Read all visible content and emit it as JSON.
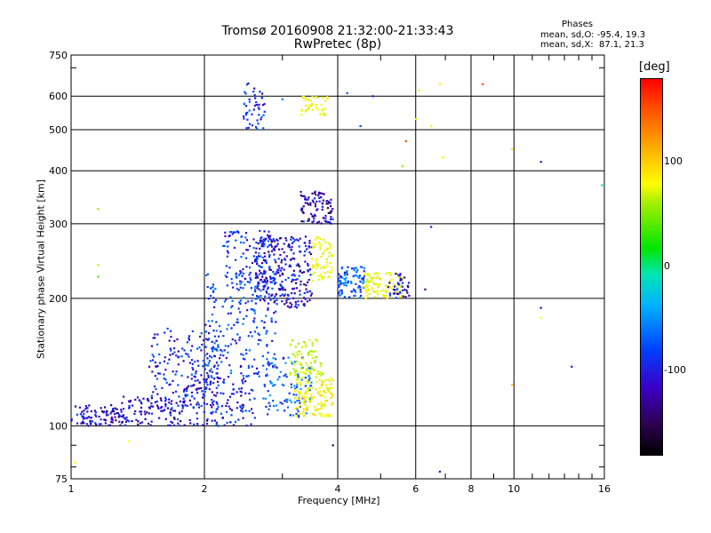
{
  "chart_data": {
    "type": "scatter",
    "title": "Tromsø 20160908 21:32:00-21:33:43",
    "subtitle": "RwPretec (8p)",
    "xlabel": "Frequency [MHz]",
    "ylabel": "Stationary phase Virtual Height [km]",
    "x_scale": "log",
    "y_scale": "log",
    "xlim": [
      1,
      16
    ],
    "ylim": [
      75,
      750
    ],
    "x_ticks": [
      "1",
      "2",
      "4",
      "6",
      "8",
      "10",
      "16"
    ],
    "y_ticks": [
      "75",
      "100",
      "200",
      "300",
      "400",
      "500",
      "600",
      "750"
    ],
    "grid": true,
    "phases": {
      "header": "Phases",
      "o_mode": "mean, sd,O: -95.4, 19.3",
      "x_mode": "mean, sd,X:  87.1, 21.3"
    },
    "colorbar": {
      "label": "[deg]",
      "range": [
        -180,
        180
      ],
      "ticks": [
        "100",
        "0",
        "-100"
      ]
    },
    "clusters": [
      {
        "f": [
          1.0,
          1.3
        ],
        "h": [
          100,
          112
        ],
        "phase": -125,
        "n": 90
      },
      {
        "f": [
          1.3,
          1.8
        ],
        "h": [
          100,
          118
        ],
        "phase": -120,
        "n": 110
      },
      {
        "f": [
          1.5,
          2.2
        ],
        "h": [
          110,
          170
        ],
        "phase": -110,
        "n": 170
      },
      {
        "f": [
          1.8,
          2.6
        ],
        "h": [
          100,
          130
        ],
        "phase": -115,
        "n": 140
      },
      {
        "f": [
          2.0,
          2.9
        ],
        "h": [
          130,
          230
        ],
        "phase": -100,
        "n": 220
      },
      {
        "f": [
          2.2,
          2.9
        ],
        "h": [
          210,
          290
        ],
        "phase": -105,
        "n": 120
      },
      {
        "f": [
          2.6,
          3.5
        ],
        "h": [
          190,
          280
        ],
        "phase": -120,
        "n": 260
      },
      {
        "f": [
          2.7,
          3.5
        ],
        "h": [
          105,
          145
        ],
        "phase": -90,
        "n": 110
      },
      {
        "f": [
          3.1,
          3.7
        ],
        "h": [
          130,
          160
        ],
        "phase": 60,
        "n": 80
      },
      {
        "f": [
          3.2,
          3.9
        ],
        "h": [
          105,
          130
        ],
        "phase": 90,
        "n": 130
      },
      {
        "f": [
          3.5,
          3.9
        ],
        "h": [
          220,
          280
        ],
        "phase": 85,
        "n": 70
      },
      {
        "f": [
          3.3,
          3.9
        ],
        "h": [
          300,
          360
        ],
        "phase": -130,
        "n": 90
      },
      {
        "f": [
          3.3,
          3.8
        ],
        "h": [
          540,
          600
        ],
        "phase": 80,
        "n": 40
      },
      {
        "f": [
          2.45,
          2.75
        ],
        "h": [
          500,
          650
        ],
        "phase": -110,
        "n": 50
      },
      {
        "f": [
          4.0,
          4.6
        ],
        "h": [
          200,
          240
        ],
        "phase": -90,
        "n": 90
      },
      {
        "f": [
          4.6,
          5.6
        ],
        "h": [
          200,
          230
        ],
        "phase": 85,
        "n": 90
      },
      {
        "f": [
          5.2,
          5.8
        ],
        "h": [
          200,
          230
        ],
        "phase": -120,
        "n": 40
      }
    ],
    "outliers": [
      {
        "x": 1.15,
        "y": 325,
        "phase": 40
      },
      {
        "x": 1.15,
        "y": 240,
        "phase": 60
      },
      {
        "x": 1.15,
        "y": 225,
        "phase": 20
      },
      {
        "x": 1.35,
        "y": 92,
        "phase": 90
      },
      {
        "x": 1.02,
        "y": 82,
        "phase": 85
      },
      {
        "x": 6.5,
        "y": 295,
        "phase": -110
      },
      {
        "x": 6.3,
        "y": 210,
        "phase": -140
      },
      {
        "x": 6.8,
        "y": 640,
        "phase": 85
      },
      {
        "x": 6.1,
        "y": 620,
        "phase": 70
      },
      {
        "x": 8.5,
        "y": 640,
        "phase": 160
      },
      {
        "x": 9.9,
        "y": 450,
        "phase": 100
      },
      {
        "x": 9.9,
        "y": 125,
        "phase": 120
      },
      {
        "x": 11.5,
        "y": 420,
        "phase": -120
      },
      {
        "x": 11.5,
        "y": 190,
        "phase": -130
      },
      {
        "x": 11.5,
        "y": 180,
        "phase": 90
      },
      {
        "x": 13.5,
        "y": 138,
        "phase": -125
      },
      {
        "x": 15.8,
        "y": 370,
        "phase": -30
      },
      {
        "x": 3.9,
        "y": 90,
        "phase": -150
      },
      {
        "x": 6.8,
        "y": 78,
        "phase": -120
      },
      {
        "x": 5.7,
        "y": 470,
        "phase": 160
      },
      {
        "x": 5.6,
        "y": 410,
        "phase": 40
      },
      {
        "x": 6.9,
        "y": 430,
        "phase": 85
      },
      {
        "x": 4.2,
        "y": 610,
        "phase": -90
      },
      {
        "x": 4.5,
        "y": 510,
        "phase": -100
      },
      {
        "x": 4.8,
        "y": 600,
        "phase": -110
      },
      {
        "x": 6.5,
        "y": 510,
        "phase": 80
      },
      {
        "x": 6.0,
        "y": 530,
        "phase": 100
      },
      {
        "x": 3.0,
        "y": 590,
        "phase": -80
      }
    ]
  }
}
